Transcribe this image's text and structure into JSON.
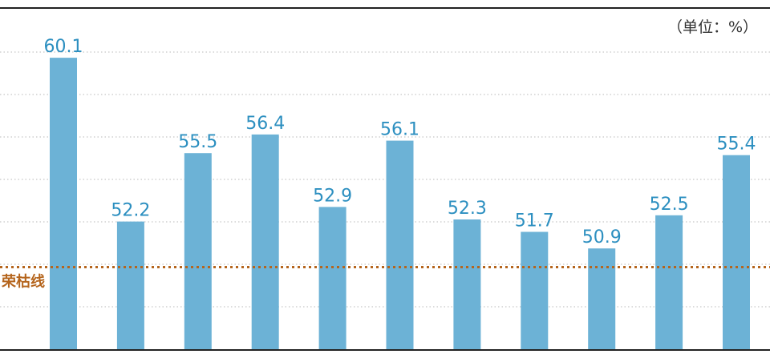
{
  "chart_data": {
    "type": "bar",
    "unit_label": "（单位：%）",
    "reference_label": "荣枯线",
    "reference_value": 50,
    "values": [
      60.1,
      52.2,
      55.5,
      56.4,
      52.9,
      56.1,
      52.3,
      51.7,
      50.9,
      52.5,
      55.4
    ],
    "ylim": [
      46.0,
      62.5
    ],
    "grid": true,
    "colors": {
      "bar": "#6cb2d6",
      "label": "#2c8fc0",
      "reference": "#b5651d",
      "grid": "#b8b8b8",
      "axis": "#222222"
    }
  }
}
